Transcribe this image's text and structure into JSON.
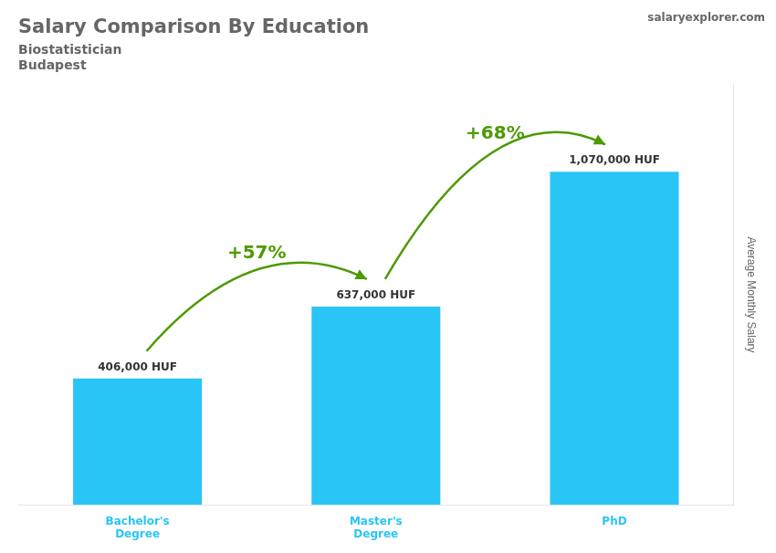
{
  "chart_data": {
    "type": "bar",
    "title": "Salary Comparison By Education",
    "subtitle": [
      "Biostatistician",
      "Budapest"
    ],
    "source": "salaryexplorer.com",
    "ylabel": "Average Monthly Salary",
    "categories": [
      "Bachelor's\nDegree",
      "Master's\nDegree",
      "PhD"
    ],
    "values": [
      406000,
      637000,
      1070000
    ],
    "value_labels": [
      "406,000 HUF",
      "637,000 HUF",
      "1,070,000 HUF"
    ],
    "data_labels": true,
    "annotations": [
      "+57%",
      "+68%"
    ],
    "color": "#29C5F6",
    "ylim": [
      0,
      1350000
    ],
    "grid": false,
    "tick_labels": "x"
  }
}
